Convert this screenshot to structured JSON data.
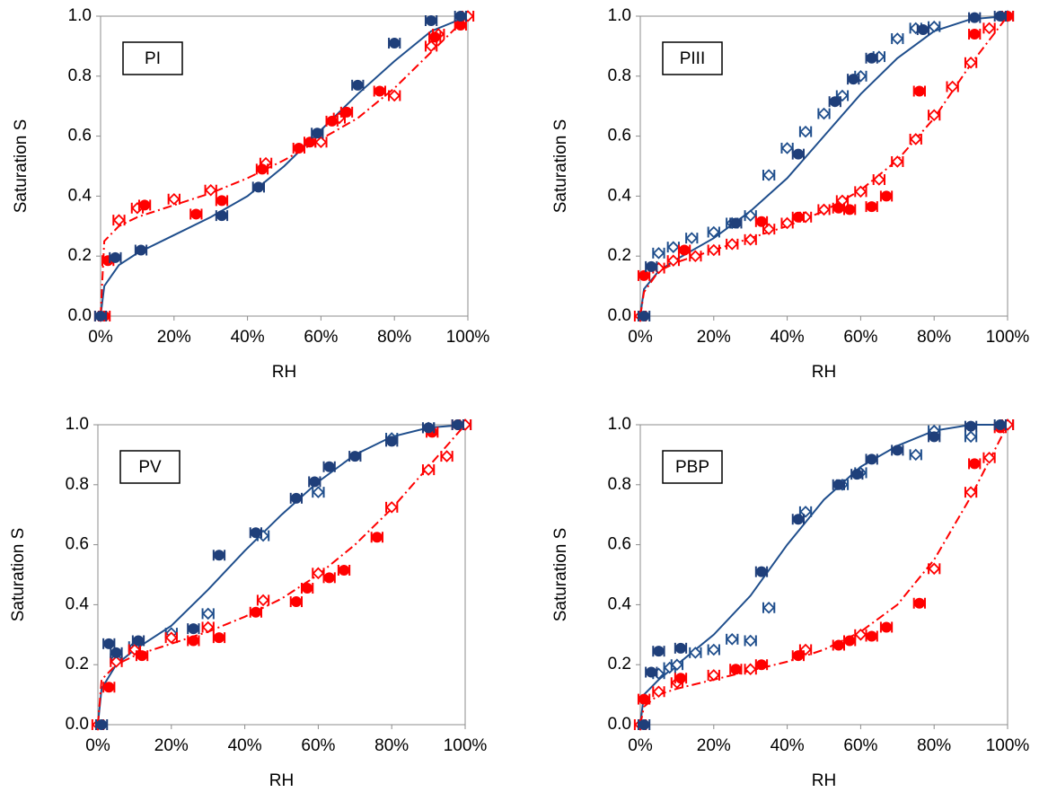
{
  "chart_data": [
    {
      "type": "scatter",
      "title": "PI",
      "xlabel": "RH",
      "ylabel": "Saturation S",
      "xlim": [
        0,
        100
      ],
      "ylim": [
        0,
        1
      ],
      "xticks": [
        {
          "value": 0,
          "label": "0%"
        },
        {
          "value": 20,
          "label": "20%"
        },
        {
          "value": 40,
          "label": "40%"
        },
        {
          "value": 60,
          "label": "60%"
        },
        {
          "value": 80,
          "label": "80%"
        },
        {
          "value": 100,
          "label": "100%"
        }
      ],
      "yticks": [
        {
          "value": 0,
          "label": "0.0"
        },
        0.2,
        0.4,
        0.6,
        0.8,
        {
          "value": 1,
          "label": "1.0"
        }
      ],
      "series": [
        {
          "kind": "line",
          "style": "solid",
          "color": "#1f4e8c",
          "x": [
            0,
            1,
            5,
            10,
            20,
            30,
            40,
            50,
            60,
            70,
            80,
            90,
            100
          ],
          "values": [
            0,
            0.1,
            0.17,
            0.21,
            0.27,
            0.33,
            0.4,
            0.5,
            0.62,
            0.74,
            0.85,
            0.95,
            1.0
          ]
        },
        {
          "kind": "line",
          "style": "dashdot",
          "color": "#ff0000",
          "x": [
            0,
            1,
            5,
            10,
            20,
            30,
            40,
            50,
            60,
            70,
            80,
            90,
            100
          ],
          "values": [
            0,
            0.25,
            0.3,
            0.33,
            0.37,
            0.41,
            0.46,
            0.52,
            0.59,
            0.66,
            0.76,
            0.88,
            1.0
          ]
        },
        {
          "kind": "points",
          "marker": "diamond",
          "color": "#ff0000",
          "xerr": 1.5,
          "x": [
            0,
            5,
            10,
            20,
            30,
            45,
            60,
            65,
            80,
            90,
            92,
            100
          ],
          "values": [
            0,
            0.32,
            0.36,
            0.39,
            0.42,
            0.51,
            0.58,
            0.66,
            0.735,
            0.9,
            0.94,
            1.0
          ]
        },
        {
          "kind": "points",
          "marker": "circle",
          "color": "#ff0000",
          "xerr": 1.5,
          "x": [
            1,
            2,
            12,
            26,
            33,
            44,
            54,
            57,
            63,
            67,
            76,
            91,
            98
          ],
          "values": [
            0,
            0.185,
            0.37,
            0.34,
            0.385,
            0.49,
            0.56,
            0.58,
            0.65,
            0.68,
            0.75,
            0.93,
            0.97
          ]
        },
        {
          "kind": "points",
          "marker": "circle",
          "color": "#1f3f7a",
          "xerr": 1.5,
          "x": [
            0,
            4,
            11,
            33,
            43,
            59,
            70,
            80,
            90,
            98
          ],
          "values": [
            0,
            0.195,
            0.22,
            0.335,
            0.43,
            0.61,
            0.77,
            0.91,
            0.985,
            1.0
          ]
        }
      ]
    },
    {
      "type": "scatter",
      "title": "PIII",
      "xlabel": "RH",
      "ylabel": "Saturation S",
      "xlim": [
        0,
        100
      ],
      "ylim": [
        0,
        1
      ],
      "xticks": [
        {
          "value": 0,
          "label": "0%"
        },
        {
          "value": 20,
          "label": "20%"
        },
        {
          "value": 40,
          "label": "40%"
        },
        {
          "value": 60,
          "label": "60%"
        },
        {
          "value": 80,
          "label": "80%"
        },
        {
          "value": 100,
          "label": "100%"
        }
      ],
      "yticks": [
        {
          "value": 0,
          "label": "0.0"
        },
        0.2,
        0.4,
        0.6,
        0.8,
        {
          "value": 1,
          "label": "1.0"
        }
      ],
      "series": [
        {
          "kind": "line",
          "style": "solid",
          "color": "#1f4e8c",
          "x": [
            0,
            1,
            5,
            10,
            20,
            30,
            40,
            50,
            60,
            70,
            80,
            90,
            100
          ],
          "values": [
            0,
            0.09,
            0.15,
            0.19,
            0.26,
            0.35,
            0.46,
            0.6,
            0.74,
            0.86,
            0.95,
            0.99,
            1.0
          ]
        },
        {
          "kind": "line",
          "style": "dashdot",
          "color": "#ff0000",
          "x": [
            0,
            1,
            5,
            10,
            20,
            30,
            40,
            50,
            60,
            70,
            80,
            90,
            100
          ],
          "values": [
            0,
            0.08,
            0.15,
            0.18,
            0.22,
            0.26,
            0.3,
            0.35,
            0.42,
            0.52,
            0.66,
            0.84,
            1.0
          ]
        },
        {
          "kind": "points",
          "marker": "diamond",
          "color": "#1f4e8c",
          "xerr": 1.5,
          "x": [
            5,
            9,
            14,
            20,
            25,
            30,
            35,
            40,
            45,
            50,
            55,
            60,
            65,
            70,
            75,
            80,
            100
          ],
          "values": [
            0.21,
            0.23,
            0.26,
            0.28,
            0.31,
            0.335,
            0.47,
            0.56,
            0.615,
            0.675,
            0.735,
            0.8,
            0.865,
            0.925,
            0.96,
            0.965,
            1.0
          ]
        },
        {
          "kind": "points",
          "marker": "diamond",
          "color": "#ff0000",
          "xerr": 1.5,
          "x": [
            0,
            5,
            9,
            15,
            20,
            25,
            30,
            35,
            40,
            45,
            50,
            55,
            60,
            65,
            70,
            75,
            80,
            85,
            90,
            95
          ],
          "values": [
            0,
            0.16,
            0.185,
            0.2,
            0.22,
            0.24,
            0.255,
            0.29,
            0.31,
            0.33,
            0.355,
            0.385,
            0.415,
            0.455,
            0.515,
            0.59,
            0.67,
            0.765,
            0.845,
            0.96
          ]
        },
        {
          "kind": "points",
          "marker": "circle",
          "color": "#ff0000",
          "xerr": 1.5,
          "x": [
            1,
            12,
            33,
            43,
            54,
            57,
            63,
            67,
            76,
            91,
            100
          ],
          "values": [
            0.135,
            0.22,
            0.315,
            0.33,
            0.36,
            0.355,
            0.365,
            0.4,
            0.75,
            0.94,
            1.0
          ]
        },
        {
          "kind": "points",
          "marker": "circle",
          "color": "#1f3f7a",
          "xerr": 1.5,
          "x": [
            1,
            3,
            26,
            43,
            53,
            58,
            63,
            77,
            91,
            98
          ],
          "values": [
            0,
            0.165,
            0.31,
            0.54,
            0.715,
            0.79,
            0.86,
            0.955,
            0.995,
            1.0
          ]
        }
      ]
    },
    {
      "type": "scatter",
      "title": "PV",
      "xlabel": "RH",
      "ylabel": "Saturation S",
      "xlim": [
        0,
        100
      ],
      "ylim": [
        0,
        1
      ],
      "xticks": [
        {
          "value": 0,
          "label": "0%"
        },
        {
          "value": 20,
          "label": "20%"
        },
        {
          "value": 40,
          "label": "40%"
        },
        {
          "value": 60,
          "label": "60%"
        },
        {
          "value": 80,
          "label": "80%"
        },
        {
          "value": 100,
          "label": "100%"
        }
      ],
      "yticks": [
        {
          "value": 0,
          "label": "0.0"
        },
        0.2,
        0.4,
        0.6,
        0.8,
        {
          "value": 1,
          "label": "1.0"
        }
      ],
      "series": [
        {
          "kind": "line",
          "style": "solid",
          "color": "#1f4e8c",
          "x": [
            0,
            1,
            5,
            10,
            20,
            30,
            40,
            50,
            60,
            70,
            80,
            90,
            100
          ],
          "values": [
            0,
            0.12,
            0.2,
            0.25,
            0.33,
            0.45,
            0.58,
            0.7,
            0.81,
            0.9,
            0.96,
            0.99,
            1.0
          ]
        },
        {
          "kind": "line",
          "style": "dashdot",
          "color": "#ff0000",
          "x": [
            0,
            1,
            5,
            10,
            20,
            30,
            40,
            50,
            60,
            70,
            80,
            90,
            100
          ],
          "values": [
            0,
            0.15,
            0.2,
            0.23,
            0.27,
            0.31,
            0.36,
            0.42,
            0.5,
            0.6,
            0.72,
            0.86,
            1.0
          ]
        },
        {
          "kind": "points",
          "marker": "diamond",
          "color": "#1f4e8c",
          "xerr": 1.5,
          "x": [
            5,
            10,
            20,
            30,
            45,
            60,
            80,
            90,
            100
          ],
          "values": [
            0.22,
            0.26,
            0.305,
            0.37,
            0.63,
            0.775,
            0.955,
            0.99,
            1.0
          ]
        },
        {
          "kind": "points",
          "marker": "diamond",
          "color": "#ff0000",
          "xerr": 1.5,
          "x": [
            0,
            5,
            10,
            20,
            30,
            45,
            60,
            80,
            90,
            95,
            100
          ],
          "values": [
            0,
            0.21,
            0.25,
            0.29,
            0.325,
            0.415,
            0.505,
            0.725,
            0.85,
            0.895,
            1.0
          ]
        },
        {
          "kind": "points",
          "marker": "circle",
          "color": "#ff0000",
          "xerr": 1.5,
          "x": [
            3,
            12,
            26,
            33,
            43,
            54,
            57,
            63,
            67,
            76,
            91,
            98
          ],
          "values": [
            0.125,
            0.23,
            0.28,
            0.29,
            0.375,
            0.41,
            0.455,
            0.49,
            0.515,
            0.625,
            0.975,
            1.0
          ]
        },
        {
          "kind": "points",
          "marker": "circle",
          "color": "#1f3f7a",
          "xerr": 1.5,
          "x": [
            1,
            3,
            5,
            11,
            26,
            33,
            43,
            54,
            59,
            63,
            70,
            80,
            90,
            98
          ],
          "values": [
            0,
            0.27,
            0.24,
            0.28,
            0.32,
            0.565,
            0.64,
            0.755,
            0.81,
            0.86,
            0.895,
            0.945,
            0.99,
            1.0
          ]
        }
      ]
    },
    {
      "type": "scatter",
      "title": "PBP",
      "xlabel": "RH",
      "ylabel": "Saturation S",
      "xlim": [
        0,
        100
      ],
      "ylim": [
        0,
        1
      ],
      "xticks": [
        {
          "value": 0,
          "label": "0%"
        },
        {
          "value": 20,
          "label": "20%"
        },
        {
          "value": 40,
          "label": "40%"
        },
        {
          "value": 60,
          "label": "60%"
        },
        {
          "value": 80,
          "label": "80%"
        },
        {
          "value": 100,
          "label": "100%"
        }
      ],
      "yticks": [
        {
          "value": 0,
          "label": "0.0"
        },
        0.2,
        0.4,
        0.6,
        0.8,
        {
          "value": 1,
          "label": "1.0"
        }
      ],
      "series": [
        {
          "kind": "line",
          "style": "solid",
          "color": "#1f4e8c",
          "x": [
            0,
            1,
            5,
            10,
            20,
            30,
            40,
            50,
            60,
            70,
            80,
            90,
            100
          ],
          "values": [
            0,
            0.1,
            0.15,
            0.2,
            0.3,
            0.43,
            0.6,
            0.75,
            0.86,
            0.93,
            0.98,
            1.0,
            1.0
          ]
        },
        {
          "kind": "line",
          "style": "dashdot",
          "color": "#ff0000",
          "x": [
            0,
            1,
            5,
            10,
            20,
            30,
            40,
            50,
            60,
            70,
            80,
            90,
            100
          ],
          "values": [
            0,
            0.06,
            0.1,
            0.12,
            0.15,
            0.18,
            0.21,
            0.25,
            0.31,
            0.4,
            0.55,
            0.76,
            1.0
          ]
        },
        {
          "kind": "points",
          "marker": "diamond",
          "color": "#1f4e8c",
          "xerr": 1.5,
          "x": [
            5,
            8,
            10,
            15,
            20,
            25,
            30,
            35,
            45,
            55,
            60,
            75,
            80,
            90,
            100
          ],
          "values": [
            0.17,
            0.19,
            0.2,
            0.24,
            0.25,
            0.285,
            0.28,
            0.39,
            0.71,
            0.8,
            0.84,
            0.9,
            0.98,
            0.96,
            1.0
          ]
        },
        {
          "kind": "points",
          "marker": "diamond",
          "color": "#ff0000",
          "xerr": 1.5,
          "x": [
            0,
            5,
            10,
            20,
            30,
            45,
            60,
            80,
            90,
            95,
            100
          ],
          "values": [
            0,
            0.11,
            0.14,
            0.165,
            0.185,
            0.25,
            0.3,
            0.52,
            0.775,
            0.89,
            1.0
          ]
        },
        {
          "kind": "points",
          "marker": "circle",
          "color": "#ff0000",
          "xerr": 1.5,
          "x": [
            1,
            11,
            26,
            33,
            43,
            54,
            57,
            63,
            67,
            76,
            91,
            98
          ],
          "values": [
            0.085,
            0.155,
            0.185,
            0.2,
            0.23,
            0.265,
            0.28,
            0.295,
            0.325,
            0.405,
            0.87,
            0.99
          ]
        },
        {
          "kind": "points",
          "marker": "circle",
          "color": "#1f3f7a",
          "xerr": 1.5,
          "x": [
            1,
            3,
            5,
            11,
            33,
            43,
            54,
            59,
            63,
            70,
            80,
            90,
            98
          ],
          "values": [
            0,
            0.175,
            0.245,
            0.255,
            0.51,
            0.685,
            0.8,
            0.835,
            0.885,
            0.915,
            0.96,
            0.995,
            1.0
          ]
        }
      ]
    }
  ]
}
